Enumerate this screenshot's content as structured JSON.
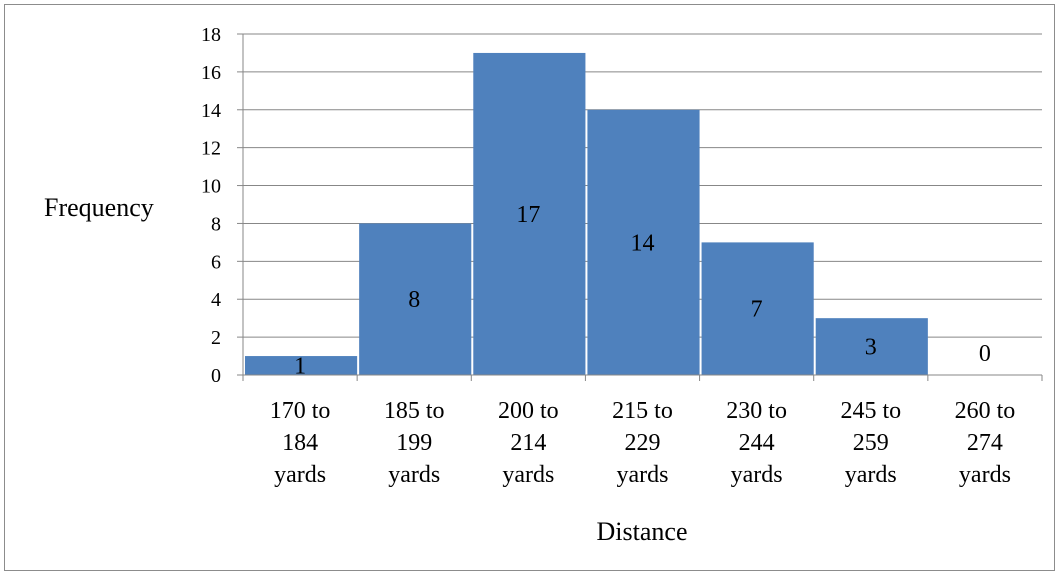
{
  "chart_data": {
    "type": "bar",
    "categories": [
      [
        "170 to",
        "184",
        "yards"
      ],
      [
        "185 to",
        "199",
        "yards"
      ],
      [
        "200 to",
        "214",
        "yards"
      ],
      [
        "215 to",
        "229",
        "yards"
      ],
      [
        "230 to",
        "244",
        "yards"
      ],
      [
        "245 to",
        "259",
        "yards"
      ],
      [
        "260 to",
        "274",
        "yards"
      ]
    ],
    "values": [
      1,
      8,
      17,
      14,
      7,
      3,
      0
    ],
    "data_labels": [
      "1",
      "8",
      "17",
      "14",
      "7",
      "3",
      "0"
    ],
    "xlabel": "Distance",
    "ylabel": "Frequency",
    "ylim": [
      0,
      18
    ],
    "yticks": [
      0,
      2,
      4,
      6,
      8,
      10,
      12,
      14,
      16,
      18
    ],
    "grid": "horizontal",
    "bar_gap": "none",
    "legend": "none",
    "colors": {
      "bar": "#4f81bd",
      "gridline": "#878787",
      "axis": "#878787",
      "frame": "#8c8c8c",
      "text": "#000000"
    }
  }
}
